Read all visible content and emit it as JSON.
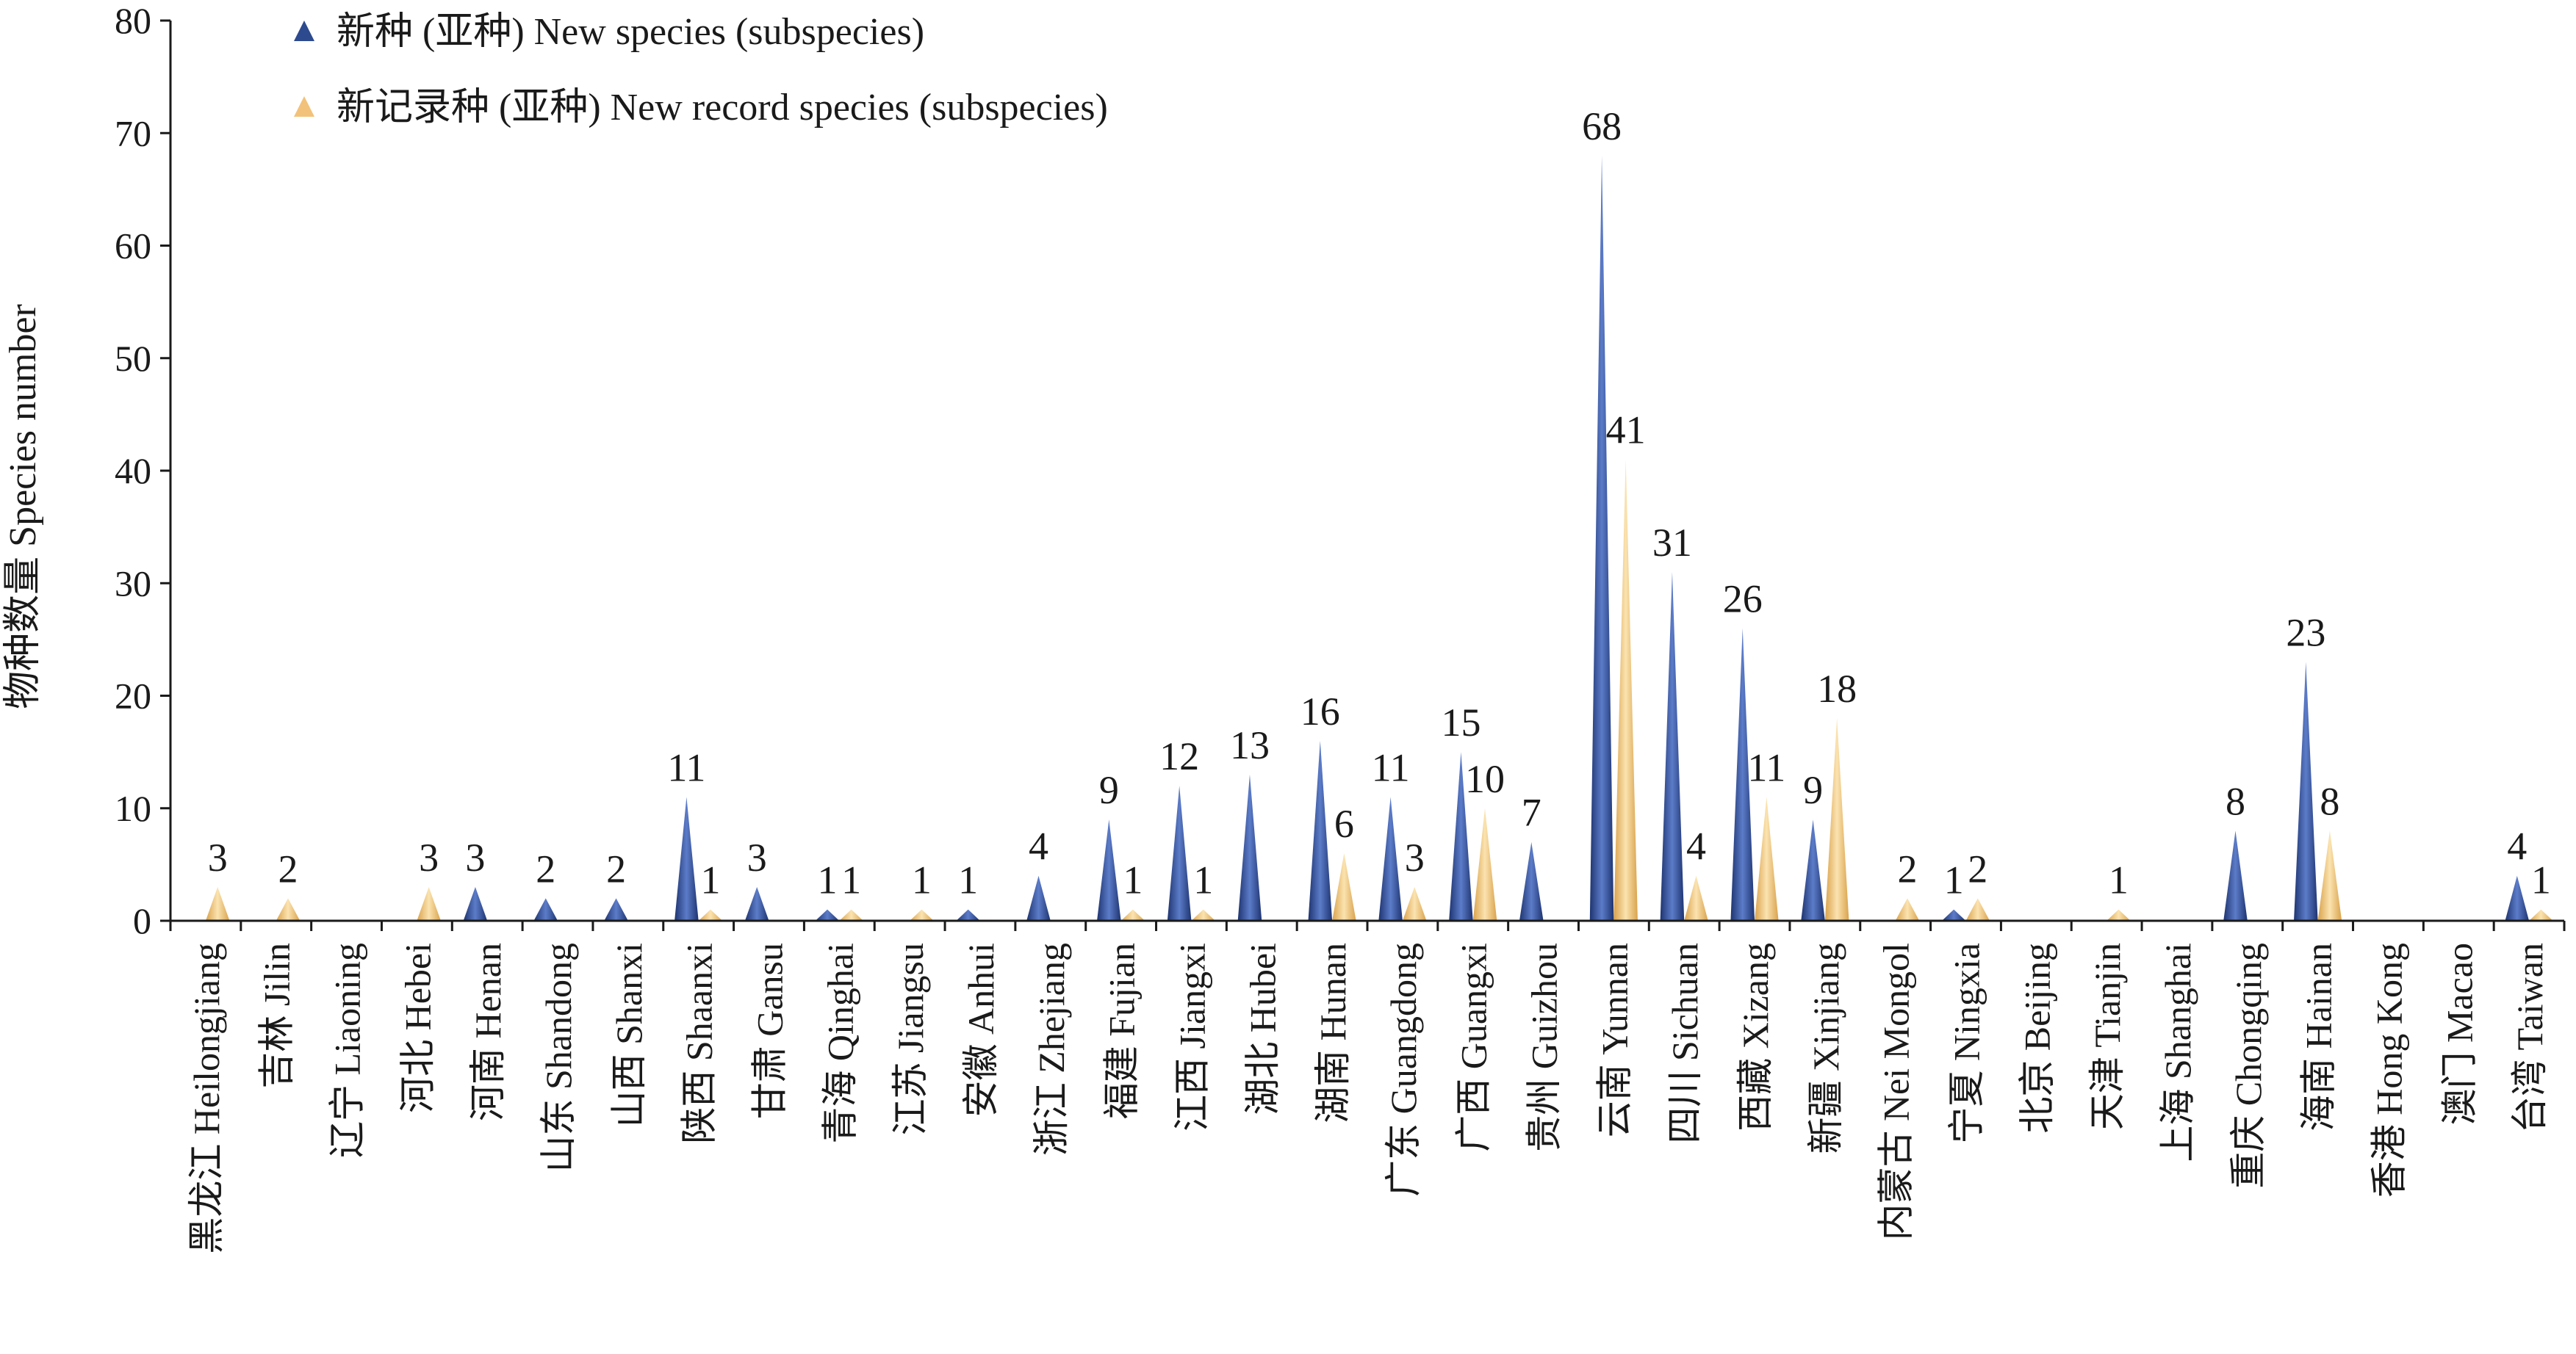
{
  "chart_data": {
    "type": "area",
    "ylabel": "物种数量 Species number",
    "ylim": [
      0,
      80
    ],
    "yticks": [
      0,
      10,
      20,
      30,
      40,
      50,
      60,
      70,
      80
    ],
    "legend_position": "top-left",
    "categories": [
      "黑龙江 Heilongjiang",
      "吉林 Jilin",
      "辽宁 Liaoning",
      "河北 Hebei",
      "河南 Henan",
      "山东 Shandong",
      "山西 Shanxi",
      "陕西 Shaanxi",
      "甘肃 Gansu",
      "青海 Qinghai",
      "江苏 Jiangsu",
      "安徽 Anhui",
      "浙江 Zhejiang",
      "福建 Fujian",
      "江西 Jiangxi",
      "湖北 Hubei",
      "湖南 Hunan",
      "广东 Guangdong",
      "广西 Guangxi",
      "贵州 Guizhou",
      "云南 Yunnan",
      "四川 Sichuan",
      "西藏 Xizang",
      "新疆 Xinjiang",
      "内蒙古 Nei Mongol",
      "宁夏 Ningxia",
      "北京 Beijing",
      "天津 Tianjin",
      "上海 Shanghai",
      "重庆 Chongqing",
      "海南 Hainan",
      "香港 Hong Kong",
      "澳门 Macao",
      "台湾 Taiwan"
    ],
    "series": [
      {
        "name": "新种 (亚种) New species (subspecies)",
        "color": "#2e4a8e",
        "values": [
          0,
          0,
          0,
          0,
          3,
          2,
          2,
          11,
          3,
          1,
          0,
          1,
          4,
          9,
          12,
          13,
          16,
          11,
          15,
          7,
          68,
          31,
          26,
          9,
          0,
          1,
          0,
          0,
          0,
          8,
          23,
          0,
          0,
          4
        ]
      },
      {
        "name": "新记录种 (亚种) New record species (subspecies)",
        "color": "#f2c27a",
        "values": [
          3,
          2,
          0,
          3,
          0,
          0,
          0,
          1,
          0,
          1,
          1,
          0,
          0,
          1,
          1,
          0,
          6,
          3,
          10,
          0,
          41,
          4,
          11,
          18,
          2,
          2,
          0,
          1,
          0,
          0,
          8,
          0,
          0,
          1
        ]
      }
    ]
  }
}
